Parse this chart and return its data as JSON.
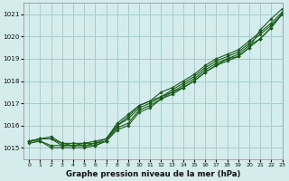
{
  "title": "Graphe pression niveau de la mer (hPa)",
  "bg_color": "#d4ecec",
  "grid_color": "#a8cccc",
  "line_color": "#1a5c1a",
  "xlim": [
    -0.5,
    23
  ],
  "ylim": [
    1014.5,
    1021.5
  ],
  "yticks": [
    1015,
    1016,
    1017,
    1018,
    1019,
    1020,
    1021
  ],
  "xticks": [
    0,
    1,
    2,
    3,
    4,
    5,
    6,
    7,
    8,
    9,
    10,
    11,
    12,
    13,
    14,
    15,
    16,
    17,
    18,
    19,
    20,
    21,
    22,
    23
  ],
  "series": [
    [
      1015.3,
      1015.4,
      1015.4,
      1015.1,
      1015.1,
      1015.2,
      1015.2,
      1015.3,
      1016.0,
      1016.4,
      1016.9,
      1017.1,
      1017.3,
      1017.5,
      1017.7,
      1018.0,
      1018.4,
      1018.7,
      1019.0,
      1019.1,
      1019.5,
      1020.3,
      1020.8,
      1021.25
    ],
    [
      1015.3,
      1015.3,
      1015.1,
      1015.1,
      1015.1,
      1015.1,
      1015.1,
      1015.3,
      1015.9,
      1016.1,
      1016.7,
      1016.9,
      1017.2,
      1017.5,
      1017.8,
      1018.1,
      1018.5,
      1018.8,
      1019.0,
      1019.2,
      1019.6,
      1019.9,
      1020.4,
      1021.05
    ],
    [
      1015.2,
      1015.3,
      1015.0,
      1015.0,
      1015.0,
      1015.0,
      1015.1,
      1015.3,
      1015.8,
      1016.0,
      1016.6,
      1016.8,
      1017.2,
      1017.4,
      1017.7,
      1018.0,
      1018.4,
      1018.7,
      1018.9,
      1019.1,
      1019.5,
      1019.9,
      1020.4,
      1021.0
    ],
    [
      1015.3,
      1015.4,
      1015.5,
      1015.2,
      1015.2,
      1015.2,
      1015.3,
      1015.4,
      1016.1,
      1016.5,
      1016.9,
      1017.1,
      1017.5,
      1017.7,
      1018.0,
      1018.3,
      1018.7,
      1019.0,
      1019.2,
      1019.4,
      1019.8,
      1020.2,
      1020.6,
      1021.1
    ],
    [
      1015.3,
      1015.4,
      1015.4,
      1015.2,
      1015.1,
      1015.1,
      1015.2,
      1015.4,
      1016.0,
      1016.3,
      1016.8,
      1017.0,
      1017.3,
      1017.6,
      1017.9,
      1018.2,
      1018.6,
      1018.9,
      1019.1,
      1019.3,
      1019.7,
      1020.1,
      1020.5,
      1021.0
    ]
  ]
}
